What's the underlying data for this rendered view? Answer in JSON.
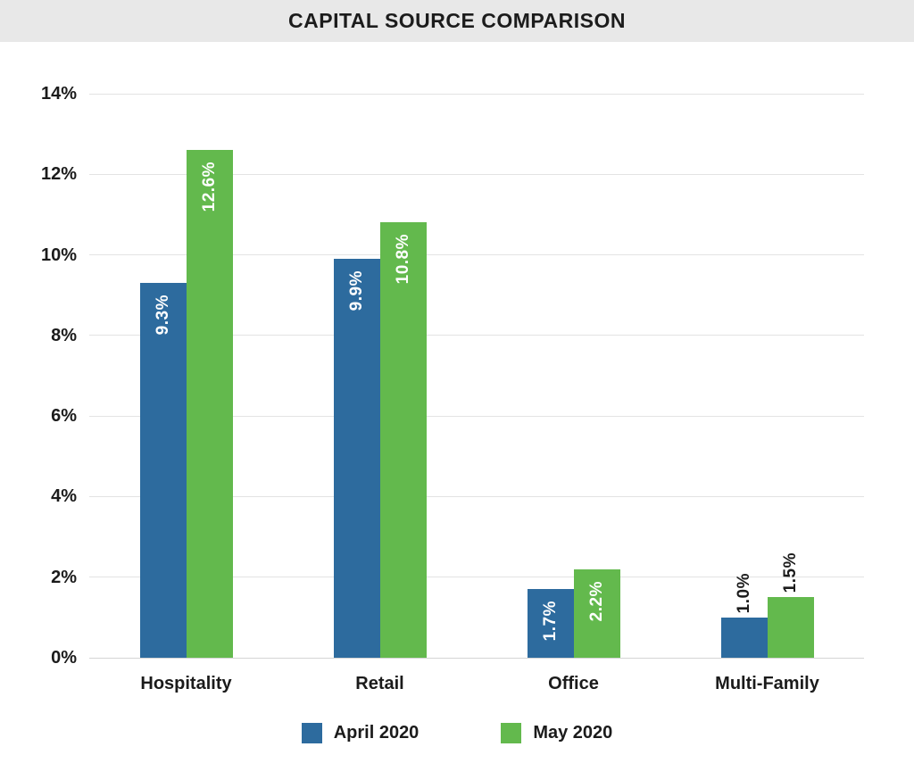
{
  "title": "CAPITAL SOURCE COMPARISON",
  "chart_data": {
    "type": "bar",
    "title": "CAPITAL SOURCE COMPARISON",
    "categories": [
      "Hospitality",
      "Retail",
      "Office",
      "Multi-Family"
    ],
    "series": [
      {
        "name": "April 2020",
        "color": "#2d6b9e",
        "values": [
          9.3,
          9.9,
          1.7,
          1.0
        ],
        "value_labels": [
          "9.3%",
          "9.9%",
          "1.7%",
          "1.0%"
        ]
      },
      {
        "name": "May 2020",
        "color": "#63b94d",
        "values": [
          12.6,
          10.8,
          2.2,
          1.5
        ],
        "value_labels": [
          "12.6%",
          "10.8%",
          "2.2%",
          "1.5%"
        ]
      }
    ],
    "xlabel": "",
    "ylabel": "",
    "ylim": [
      0,
      14
    ],
    "y_tick_values": [
      14,
      12,
      10,
      8,
      6,
      4,
      2,
      0
    ],
    "y_tick_labels": [
      "14%",
      "12%",
      "10%",
      "8%",
      "6%",
      "4%",
      "2%",
      "0%"
    ],
    "grid": true,
    "legend_position": "bottom",
    "data_label_rotation": 90
  }
}
